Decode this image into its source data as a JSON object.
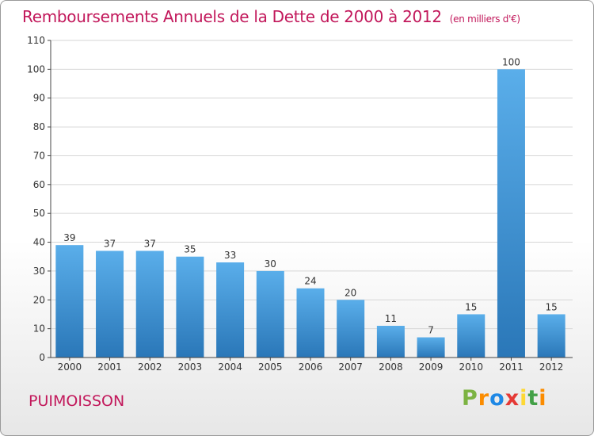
{
  "header": {
    "title": "Remboursements Annuels de la Dette de 2000 à 2012",
    "unit": "(en milliers d'€)"
  },
  "footer": {
    "commune": "PUIMOISSON",
    "logo": {
      "p": "P",
      "r": "r",
      "o": "o",
      "x": "x",
      "i1": "i",
      "t": "t",
      "i2": "i"
    }
  },
  "colors": {
    "title": "#c2185b",
    "bar_top": "#5aaeea",
    "bar_bottom": "#2a77b8",
    "axis": "#444444",
    "grid": "#d6d6d6"
  },
  "chart_data": {
    "type": "bar",
    "title": "Remboursements Annuels de la Dette de 2000 à 2012",
    "subtitle": "(en milliers d'€)",
    "categories": [
      "2000",
      "2001",
      "2002",
      "2003",
      "2004",
      "2005",
      "2006",
      "2007",
      "2008",
      "2009",
      "2010",
      "2011",
      "2012"
    ],
    "values": [
      39,
      37,
      37,
      35,
      33,
      30,
      24,
      20,
      11,
      7,
      15,
      100,
      15
    ],
    "value_labels": [
      "39",
      "37",
      "37",
      "35",
      "33",
      "30",
      "24",
      "20",
      "11",
      "7",
      "15",
      "100",
      "15"
    ],
    "ylim": [
      0,
      110
    ],
    "yticks": [
      "0",
      "10",
      "20",
      "30",
      "40",
      "50",
      "60",
      "70",
      "80",
      "90",
      "100",
      "110"
    ],
    "ytick_values": [
      0,
      10,
      20,
      30,
      40,
      50,
      60,
      70,
      80,
      90,
      100,
      110
    ],
    "grid": true,
    "legend": "none"
  }
}
